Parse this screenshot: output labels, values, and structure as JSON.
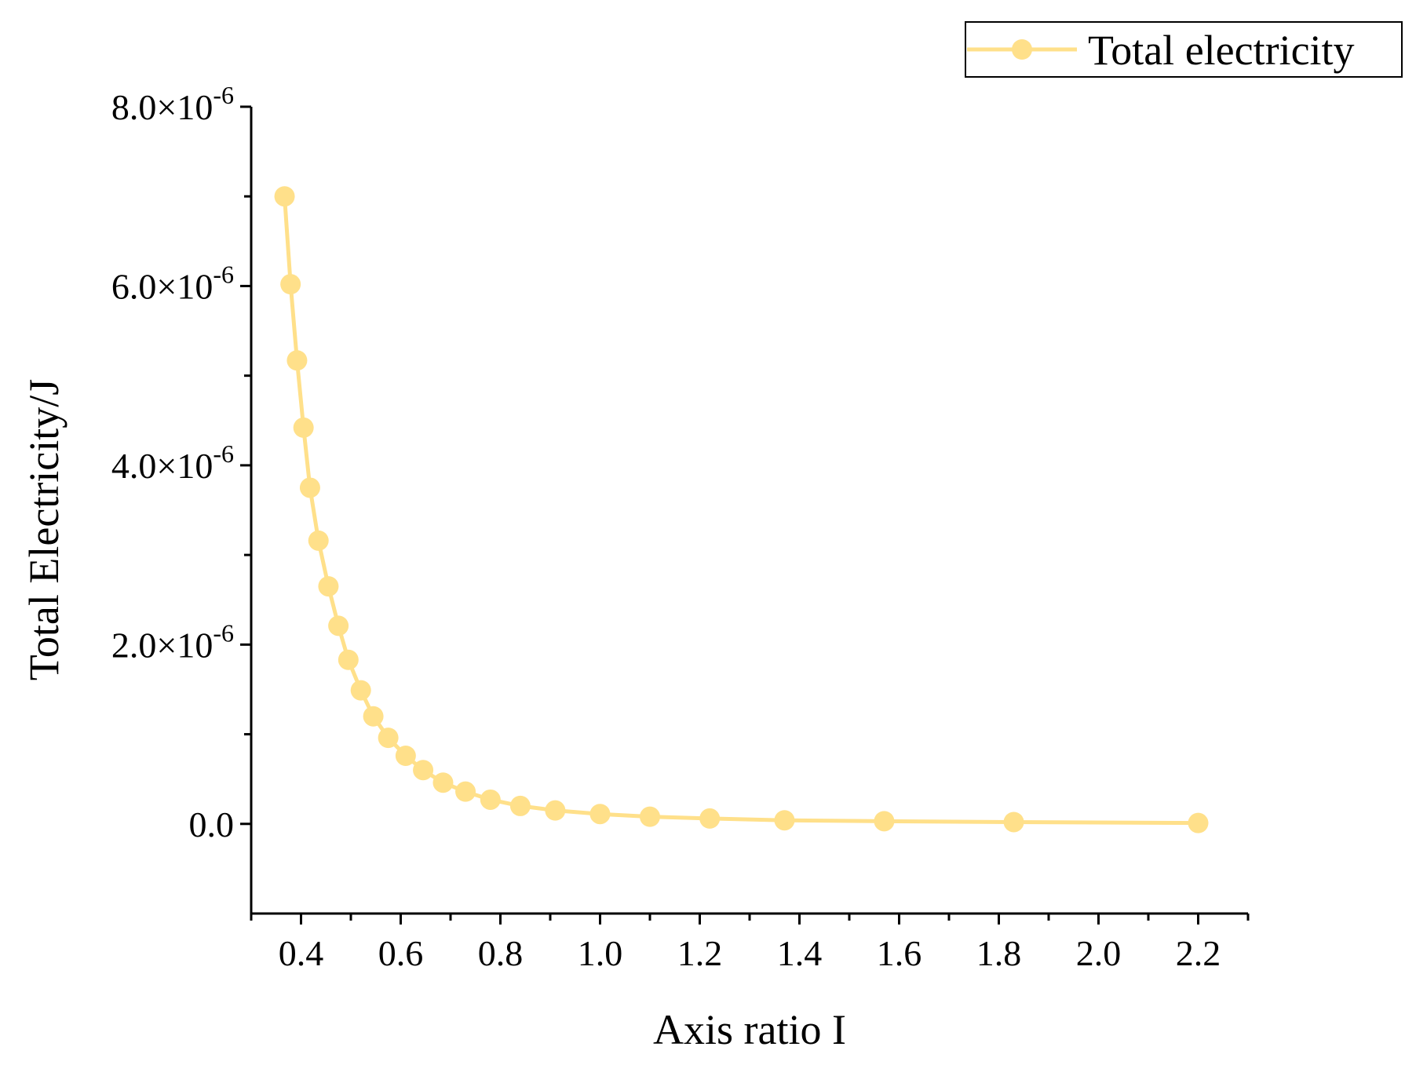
{
  "chart_data": {
    "type": "line",
    "title": "",
    "xlabel": "Axis ratio I",
    "ylabel": "Total Electricity/J",
    "xlim": [
      0.3,
      2.3
    ],
    "ylim": [
      -1e-06,
      8e-06
    ],
    "grid": false,
    "legend_position": "top-right",
    "x_ticks": [
      {
        "value": 0.4,
        "label": "0.4"
      },
      {
        "value": 0.6,
        "label": "0.6"
      },
      {
        "value": 0.8,
        "label": "0.8"
      },
      {
        "value": 1.0,
        "label": "1.0"
      },
      {
        "value": 1.2,
        "label": "1.2"
      },
      {
        "value": 1.4,
        "label": "1.4"
      },
      {
        "value": 1.6,
        "label": "1.6"
      },
      {
        "value": 1.8,
        "label": "1.8"
      },
      {
        "value": 2.0,
        "label": "2.0"
      },
      {
        "value": 2.2,
        "label": "2.2"
      }
    ],
    "x_minor_ticks": [
      0.3,
      0.5,
      0.7,
      0.9,
      1.1,
      1.3,
      1.5,
      1.7,
      1.9,
      2.1,
      2.3
    ],
    "y_ticks": [
      {
        "value": 0,
        "mantissa": "0.0",
        "exponent": ""
      },
      {
        "value": 2e-06,
        "mantissa": "2.0×10",
        "exponent": "-6"
      },
      {
        "value": 4e-06,
        "mantissa": "4.0×10",
        "exponent": "-6"
      },
      {
        "value": 6e-06,
        "mantissa": "6.0×10",
        "exponent": "-6"
      },
      {
        "value": 8e-06,
        "mantissa": "8.0×10",
        "exponent": "-6"
      }
    ],
    "y_minor_ticks": [
      1e-06,
      3e-06,
      5e-06,
      7e-06
    ],
    "series": [
      {
        "name": "Total electricity",
        "color": "#FFE08A",
        "x": [
          0.367,
          0.379,
          0.392,
          0.405,
          0.418,
          0.435,
          0.455,
          0.475,
          0.495,
          0.52,
          0.545,
          0.575,
          0.61,
          0.645,
          0.685,
          0.73,
          0.78,
          0.84,
          0.91,
          1.0,
          1.1,
          1.22,
          1.37,
          1.57,
          1.83,
          2.2
        ],
        "y": [
          7e-06,
          6.02e-06,
          5.17e-06,
          4.42e-06,
          3.75e-06,
          3.16e-06,
          2.65e-06,
          2.21e-06,
          1.83e-06,
          1.49e-06,
          1.2e-06,
          9.6e-07,
          7.6e-07,
          6e-07,
          4.6e-07,
          3.6e-07,
          2.7e-07,
          2e-07,
          1.5e-07,
          1.1e-07,
          8e-08,
          6e-08,
          4e-08,
          3e-08,
          2e-08,
          1e-08
        ]
      }
    ]
  }
}
